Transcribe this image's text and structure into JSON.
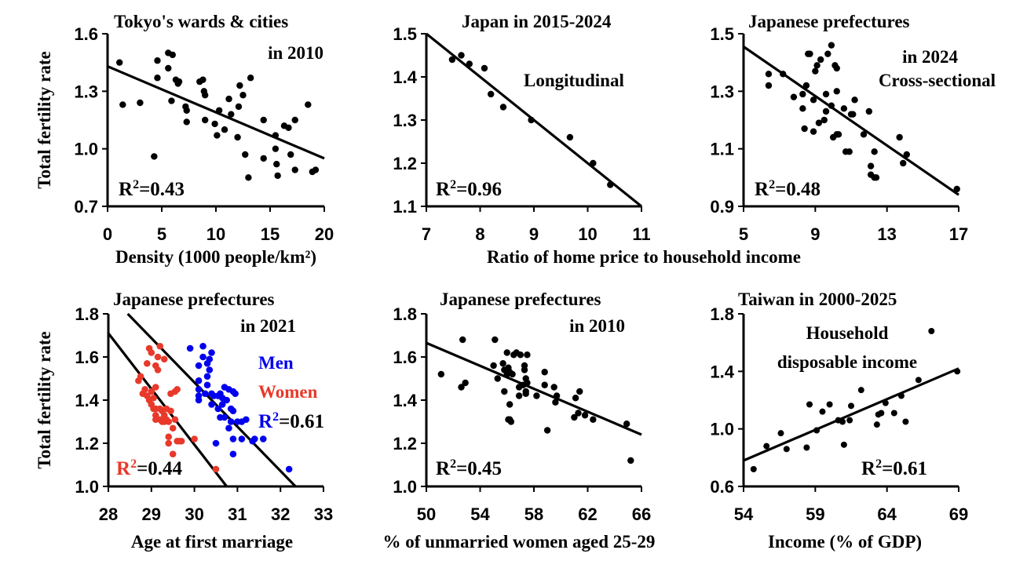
{
  "shared_labels": {
    "ylabel_top": "Total fertility rate",
    "ylabel_bottom": "Total fertility rate",
    "xlabel_top_middle": "Ratio of home price to household income"
  },
  "chart_data": [
    {
      "type": "scatter",
      "title_lines": [
        "Tokyo's wards & cities",
        "in 2010"
      ],
      "xlabel": "Density (1000 people/km²)",
      "ylabel": "Total fertility rate",
      "xlim": [
        0,
        20
      ],
      "ylim": [
        0.7,
        1.6
      ],
      "xticks": [
        "0",
        "5",
        "10",
        "15",
        "20"
      ],
      "xtick_values": [
        0,
        5,
        10,
        15,
        20
      ],
      "yticks": [
        "0.7",
        "1.0",
        "1.3",
        "1.6"
      ],
      "ytick_values": [
        0.7,
        1.0,
        1.3,
        1.6
      ],
      "r2_label": "R",
      "r2_sup": "2",
      "r2_value": "=0.43",
      "trendline": {
        "x": [
          0,
          20
        ],
        "y": [
          1.43,
          0.95
        ]
      },
      "series": [
        {
          "name": "Tokyo",
          "color": "#000000",
          "x": [
            1.1,
            1.4,
            3.0,
            4.3,
            4.6,
            4.6,
            5.6,
            5.6,
            5.9,
            6.0,
            6.3,
            6.5,
            6.6,
            7.2,
            7.3,
            7.3,
            8.5,
            8.8,
            8.9,
            9.0,
            9.0,
            9.9,
            10.1,
            10.3,
            10.8,
            11.2,
            11.4,
            12.0,
            12.1,
            12.2,
            12.5,
            12.7,
            13.0,
            13.2,
            14.4,
            14.4,
            15.5,
            15.5,
            15.6,
            15.7,
            16.3,
            16.7,
            16.9,
            17.3,
            17.3,
            18.5,
            18.9,
            19.2
          ],
          "y": [
            1.45,
            1.23,
            1.24,
            0.96,
            1.46,
            1.37,
            1.5,
            1.42,
            1.25,
            1.49,
            1.36,
            1.34,
            1.35,
            1.22,
            1.2,
            1.14,
            1.35,
            1.36,
            1.3,
            1.28,
            1.15,
            1.13,
            1.07,
            1.2,
            1.1,
            1.26,
            1.18,
            1.06,
            1.22,
            1.33,
            1.28,
            0.97,
            0.85,
            1.37,
            1.15,
            0.95,
            1.07,
            1.0,
            0.92,
            0.86,
            1.12,
            1.11,
            0.97,
            1.15,
            0.89,
            1.23,
            0.88,
            0.89
          ]
        }
      ]
    },
    {
      "type": "scatter",
      "title_lines": [
        "Japan in 2015-2024"
      ],
      "annotation": "Longitudinal",
      "xlabel": "Ratio of home price to household income",
      "ylabel": "",
      "xlim": [
        7,
        11
      ],
      "ylim": [
        1.1,
        1.5
      ],
      "xticks": [
        "7",
        "8",
        "9",
        "10",
        "11"
      ],
      "xtick_values": [
        7,
        8,
        9,
        10,
        11
      ],
      "yticks": [
        "1.1",
        "1.2",
        "1.3",
        "1.4",
        "1.5"
      ],
      "ytick_values": [
        1.1,
        1.2,
        1.3,
        1.4,
        1.5
      ],
      "r2_label": "R",
      "r2_sup": "2",
      "r2_value": "=0.96",
      "trendline": {
        "x": [
          7,
          11
        ],
        "y": [
          1.5,
          1.1
        ]
      },
      "series": [
        {
          "name": "Japan",
          "color": "#000000",
          "x": [
            7.48,
            7.65,
            7.8,
            8.08,
            8.2,
            8.43,
            8.95,
            9.67,
            10.1,
            10.42
          ],
          "y": [
            1.44,
            1.45,
            1.43,
            1.42,
            1.36,
            1.33,
            1.3,
            1.26,
            1.2,
            1.15
          ]
        }
      ]
    },
    {
      "type": "scatter",
      "title_lines": [
        "Japanese prefectures",
        "in 2024"
      ],
      "annotation": "Cross-sectional",
      "xlabel": "",
      "ylabel": "",
      "xlim": [
        5,
        17
      ],
      "ylim": [
        0.9,
        1.5
      ],
      "xticks": [
        "5",
        "9",
        "13",
        "17"
      ],
      "xtick_values": [
        5,
        9,
        13,
        17
      ],
      "yticks": [
        "0.9",
        "1.1",
        "1.3",
        "1.5"
      ],
      "ytick_values": [
        0.9,
        1.1,
        1.3,
        1.5
      ],
      "r2_label": "R",
      "r2_sup": "2",
      "r2_value": "=0.48",
      "trendline": {
        "x": [
          5,
          17
        ],
        "y": [
          1.455,
          0.94
        ]
      },
      "series": [
        {
          "name": "Prefectures",
          "color": "#000000",
          "x": [
            6.4,
            6.4,
            7.2,
            7.8,
            8.3,
            8.3,
            8.4,
            8.5,
            8.6,
            8.7,
            8.9,
            8.9,
            9.0,
            9.1,
            9.2,
            9.3,
            9.5,
            9.6,
            9.6,
            9.7,
            9.9,
            9.9,
            10.0,
            10.1,
            10.2,
            10.2,
            10.2,
            10.3,
            10.6,
            10.7,
            10.9,
            11.0,
            11.1,
            11.2,
            11.7,
            12.0,
            12.1,
            12.1,
            12.3,
            12.3,
            12.4,
            13.7,
            13.9,
            14.1,
            16.9
          ],
          "y": [
            1.36,
            1.32,
            1.36,
            1.28,
            1.29,
            1.24,
            1.17,
            1.32,
            1.43,
            1.43,
            1.27,
            1.16,
            1.37,
            1.39,
            1.19,
            1.41,
            1.2,
            1.29,
            1.23,
            1.43,
            1.25,
            1.46,
            1.14,
            1.39,
            1.38,
            1.3,
            1.15,
            1.15,
            1.24,
            1.09,
            1.09,
            1.22,
            1.22,
            1.27,
            1.15,
            1.23,
            1.04,
            1.01,
            1.09,
            1.0,
            1.0,
            1.14,
            1.05,
            1.08,
            0.96
          ]
        }
      ]
    },
    {
      "type": "scatter",
      "title_lines": [
        "Japanese prefectures",
        "in 2021"
      ],
      "xlabel": "Age at first marriage",
      "ylabel": "Total fertility rate",
      "xlim": [
        28,
        33
      ],
      "ylim": [
        1.0,
        1.8
      ],
      "xticks": [
        "28",
        "29",
        "30",
        "31",
        "32",
        "33"
      ],
      "xtick_values": [
        28,
        29,
        30,
        31,
        32,
        33
      ],
      "yticks": [
        "1.0",
        "1.2",
        "1.4",
        "1.6",
        "1.8"
      ],
      "ytick_values": [
        1.0,
        1.2,
        1.4,
        1.6,
        1.8
      ],
      "legend": {
        "men": "Men",
        "women": "Women"
      },
      "r2_men_label": "R",
      "r2_men_sup": "2",
      "r2_men_value": "=0.61",
      "r2_women_label": "R",
      "r2_women_sup": "2",
      "r2_women_value": "=0.44",
      "trendlines": [
        {
          "name": "Women",
          "x": [
            28,
            30.75
          ],
          "y": [
            1.71,
            1.0
          ]
        },
        {
          "name": "Men",
          "x": [
            28.45,
            32.35
          ],
          "y": [
            1.8,
            1.0
          ]
        }
      ],
      "series": [
        {
          "name": "Women",
          "color": "#e8392a",
          "x": [
            28.7,
            28.75,
            28.8,
            28.85,
            28.9,
            28.9,
            28.95,
            28.95,
            29.0,
            29.0,
            29.0,
            29.05,
            29.05,
            29.1,
            29.1,
            29.1,
            29.1,
            29.15,
            29.15,
            29.2,
            29.2,
            29.2,
            29.25,
            29.25,
            29.3,
            29.3,
            29.3,
            29.35,
            29.35,
            29.4,
            29.4,
            29.4,
            29.45,
            29.45,
            29.5,
            29.5,
            29.55,
            29.55,
            29.6,
            29.6,
            29.65,
            29.7,
            30.0,
            30.5,
            29.1
          ],
          "y": [
            1.49,
            1.51,
            1.43,
            1.45,
            1.42,
            1.57,
            1.4,
            1.64,
            1.38,
            1.44,
            1.62,
            1.36,
            1.41,
            1.31,
            1.33,
            1.36,
            1.56,
            1.54,
            1.6,
            1.31,
            1.36,
            1.65,
            1.3,
            1.35,
            1.3,
            1.33,
            1.59,
            1.36,
            1.31,
            1.2,
            1.23,
            1.3,
            1.35,
            1.43,
            1.15,
            1.27,
            1.44,
            1.31,
            1.21,
            1.45,
            1.21,
            1.21,
            1.22,
            1.08,
            1.46
          ]
        },
        {
          "name": "Men",
          "color": "#0000ee",
          "x": [
            29.9,
            30.1,
            30.1,
            30.1,
            30.1,
            30.1,
            30.2,
            30.2,
            30.25,
            30.3,
            30.3,
            30.35,
            30.35,
            30.4,
            30.4,
            30.4,
            30.45,
            30.5,
            30.55,
            30.55,
            30.6,
            30.6,
            30.65,
            30.65,
            30.7,
            30.7,
            30.75,
            30.8,
            30.8,
            30.85,
            30.85,
            30.9,
            30.9,
            30.9,
            30.9,
            30.95,
            31.0,
            31.1,
            31.1,
            31.2,
            31.35,
            31.4,
            31.6,
            32.2,
            30.3
          ],
          "y": [
            1.64,
            1.56,
            1.49,
            1.45,
            1.42,
            1.4,
            1.65,
            1.6,
            1.43,
            1.57,
            1.51,
            1.54,
            1.59,
            1.62,
            1.38,
            1.43,
            1.42,
            1.2,
            1.42,
            1.36,
            1.43,
            1.32,
            1.38,
            1.41,
            1.46,
            1.32,
            1.4,
            1.45,
            1.27,
            1.36,
            1.3,
            1.44,
            1.35,
            1.22,
            1.15,
            1.43,
            1.3,
            1.3,
            1.22,
            1.31,
            1.21,
            1.22,
            1.22,
            1.08,
            1.47
          ]
        }
      ]
    },
    {
      "type": "scatter",
      "title_lines": [
        "Japanese prefectures",
        "in 2010"
      ],
      "xlabel": "% of unmarried women aged 25-29",
      "ylabel": "",
      "xlim": [
        50,
        66
      ],
      "ylim": [
        1.0,
        1.8
      ],
      "xticks": [
        "50",
        "54",
        "58",
        "62",
        "66"
      ],
      "xtick_values": [
        50,
        54,
        58,
        62,
        66
      ],
      "yticks": [
        "1.0",
        "1.2",
        "1.4",
        "1.6",
        "1.8"
      ],
      "ytick_values": [
        1.0,
        1.2,
        1.4,
        1.6,
        1.8
      ],
      "r2_label": "R",
      "r2_sup": "2",
      "r2_value": "=0.45",
      "trendline": {
        "x": [
          50,
          66
        ],
        "y": [
          1.665,
          1.24
        ]
      },
      "series": [
        {
          "name": "Prefectures",
          "color": "#000000",
          "x": [
            51.1,
            52.6,
            52.7,
            52.9,
            55.0,
            55.1,
            55.3,
            55.7,
            55.8,
            55.8,
            56.0,
            56.0,
            56.1,
            56.1,
            56.2,
            56.2,
            56.3,
            56.4,
            56.5,
            56.7,
            56.9,
            56.9,
            57.0,
            57.2,
            57.3,
            57.3,
            57.4,
            57.4,
            57.4,
            57.5,
            57.5,
            58.2,
            58.8,
            58.8,
            59.0,
            59.5,
            59.6,
            59.7,
            61.0,
            61.1,
            61.3,
            61.4,
            61.8,
            62.4,
            64.9,
            65.2,
            56.2
          ],
          "y": [
            1.52,
            1.46,
            1.68,
            1.48,
            1.56,
            1.68,
            1.5,
            1.57,
            1.54,
            1.44,
            1.52,
            1.62,
            1.31,
            1.55,
            1.38,
            1.53,
            1.3,
            1.52,
            1.61,
            1.62,
            1.42,
            1.46,
            1.61,
            1.47,
            1.56,
            1.54,
            1.5,
            1.44,
            1.43,
            1.61,
            1.48,
            1.42,
            1.53,
            1.47,
            1.26,
            1.46,
            1.39,
            1.42,
            1.32,
            1.41,
            1.34,
            1.44,
            1.33,
            1.31,
            1.29,
            1.12,
            1.31
          ]
        }
      ]
    },
    {
      "type": "scatter",
      "title_lines": [
        "Taiwan in 2000-2025"
      ],
      "annotation_lines": [
        "Household",
        "disposable income"
      ],
      "xlabel": "Income (% of GDP)",
      "ylabel": "",
      "xlim": [
        54,
        69
      ],
      "ylim": [
        0.6,
        1.8
      ],
      "xticks": [
        "54",
        "59",
        "64",
        "69"
      ],
      "xtick_values": [
        54,
        59,
        64,
        69
      ],
      "yticks": [
        "0.6",
        "1.0",
        "1.4",
        "1.8"
      ],
      "ytick_values": [
        0.6,
        1.0,
        1.4,
        1.8
      ],
      "r2_label": "R",
      "r2_sup": "2",
      "r2_value": "=0.61",
      "trendline": {
        "x": [
          54,
          69
        ],
        "y": [
          0.78,
          1.42
        ]
      },
      "series": [
        {
          "name": "Taiwan",
          "color": "#000000",
          "x": [
            54.7,
            55.6,
            56.6,
            57.0,
            58.4,
            58.6,
            59.1,
            59.5,
            60.0,
            60.6,
            60.9,
            61.0,
            61.4,
            61.5,
            62.2,
            63.3,
            63.4,
            63.6,
            63.9,
            64.5,
            65.0,
            65.3,
            66.2,
            67.1,
            68.9
          ],
          "y": [
            0.72,
            0.88,
            0.97,
            0.86,
            0.87,
            1.17,
            0.99,
            1.12,
            1.17,
            1.06,
            1.05,
            0.89,
            1.06,
            1.16,
            1.27,
            1.03,
            1.1,
            1.11,
            1.18,
            1.11,
            1.23,
            1.05,
            1.34,
            1.68,
            1.4
          ]
        }
      ]
    }
  ]
}
